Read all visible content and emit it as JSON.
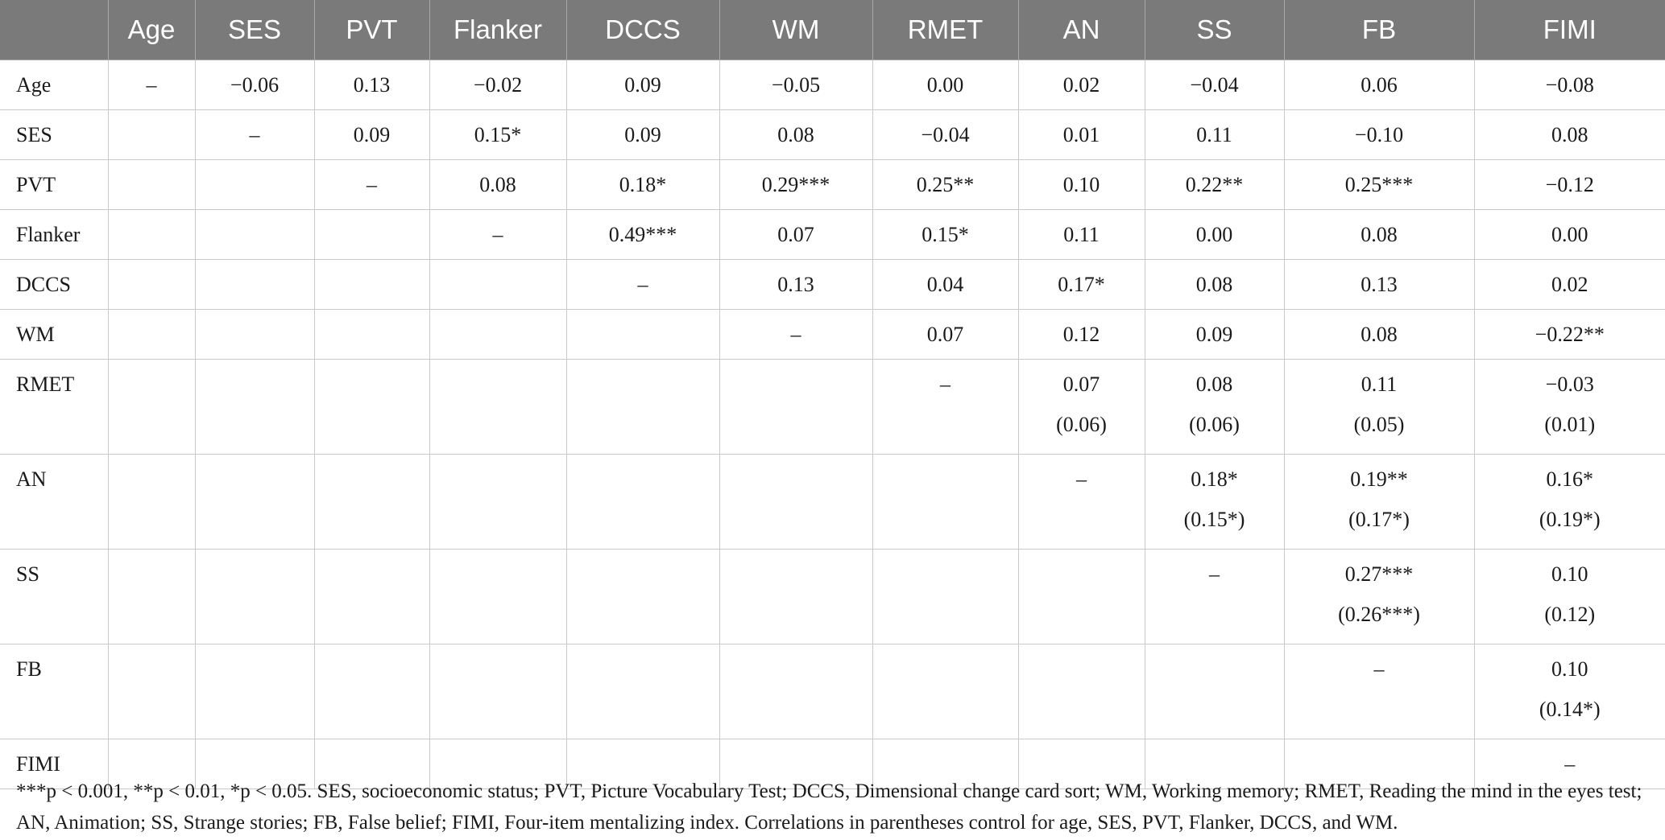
{
  "columns": [
    "",
    "Age",
    "SES",
    "PVT",
    "Flanker",
    "DCCS",
    "WM",
    "RMET",
    "AN",
    "SS",
    "FB",
    "FIMI"
  ],
  "rows": [
    {
      "label": "Age",
      "cells": [
        {
          "v": "–"
        },
        {
          "v": "−0.06"
        },
        {
          "v": "0.13"
        },
        {
          "v": "−0.02"
        },
        {
          "v": "0.09"
        },
        {
          "v": "−0.05"
        },
        {
          "v": "0.00"
        },
        {
          "v": "0.02"
        },
        {
          "v": "−0.04"
        },
        {
          "v": "0.06"
        },
        {
          "v": "−0.08"
        }
      ]
    },
    {
      "label": "SES",
      "cells": [
        {
          "v": ""
        },
        {
          "v": "–"
        },
        {
          "v": "0.09"
        },
        {
          "v": "0.15*"
        },
        {
          "v": "0.09"
        },
        {
          "v": "0.08"
        },
        {
          "v": "−0.04"
        },
        {
          "v": "0.01"
        },
        {
          "v": "0.11"
        },
        {
          "v": "−0.10"
        },
        {
          "v": "0.08"
        }
      ]
    },
    {
      "label": "PVT",
      "cells": [
        {
          "v": ""
        },
        {
          "v": ""
        },
        {
          "v": "–"
        },
        {
          "v": "0.08"
        },
        {
          "v": "0.18*"
        },
        {
          "v": "0.29***"
        },
        {
          "v": "0.25**"
        },
        {
          "v": "0.10"
        },
        {
          "v": "0.22**"
        },
        {
          "v": "0.25***"
        },
        {
          "v": "−0.12"
        }
      ]
    },
    {
      "label": "Flanker",
      "cells": [
        {
          "v": ""
        },
        {
          "v": ""
        },
        {
          "v": ""
        },
        {
          "v": "–"
        },
        {
          "v": "0.49***"
        },
        {
          "v": "0.07"
        },
        {
          "v": "0.15*"
        },
        {
          "v": "0.11"
        },
        {
          "v": "0.00"
        },
        {
          "v": "0.08"
        },
        {
          "v": "0.00"
        }
      ]
    },
    {
      "label": "DCCS",
      "cells": [
        {
          "v": ""
        },
        {
          "v": ""
        },
        {
          "v": ""
        },
        {
          "v": ""
        },
        {
          "v": "–"
        },
        {
          "v": "0.13"
        },
        {
          "v": "0.04"
        },
        {
          "v": "0.17*"
        },
        {
          "v": "0.08"
        },
        {
          "v": "0.13"
        },
        {
          "v": "0.02"
        }
      ]
    },
    {
      "label": "WM",
      "cells": [
        {
          "v": ""
        },
        {
          "v": ""
        },
        {
          "v": ""
        },
        {
          "v": ""
        },
        {
          "v": ""
        },
        {
          "v": "–"
        },
        {
          "v": "0.07"
        },
        {
          "v": "0.12"
        },
        {
          "v": "0.09"
        },
        {
          "v": "0.08"
        },
        {
          "v": "−0.22**"
        }
      ]
    },
    {
      "label": "RMET",
      "cells": [
        {
          "v": ""
        },
        {
          "v": ""
        },
        {
          "v": ""
        },
        {
          "v": ""
        },
        {
          "v": ""
        },
        {
          "v": ""
        },
        {
          "v": "–"
        },
        {
          "v": "0.07",
          "s": "(0.06)"
        },
        {
          "v": "0.08",
          "s": "(0.06)"
        },
        {
          "v": "0.11",
          "s": "(0.05)"
        },
        {
          "v": "−0.03",
          "s": "(0.01)"
        }
      ]
    },
    {
      "label": "AN",
      "cells": [
        {
          "v": ""
        },
        {
          "v": ""
        },
        {
          "v": ""
        },
        {
          "v": ""
        },
        {
          "v": ""
        },
        {
          "v": ""
        },
        {
          "v": ""
        },
        {
          "v": "–"
        },
        {
          "v": "0.18*",
          "s": "(0.15*)"
        },
        {
          "v": "0.19**",
          "s": "(0.17*)"
        },
        {
          "v": "0.16*",
          "s": "(0.19*)"
        }
      ]
    },
    {
      "label": "SS",
      "cells": [
        {
          "v": ""
        },
        {
          "v": ""
        },
        {
          "v": ""
        },
        {
          "v": ""
        },
        {
          "v": ""
        },
        {
          "v": ""
        },
        {
          "v": ""
        },
        {
          "v": ""
        },
        {
          "v": "–"
        },
        {
          "v": "0.27***",
          "s": "(0.26***)"
        },
        {
          "v": "0.10",
          "s": "(0.12)"
        }
      ]
    },
    {
      "label": "FB",
      "cells": [
        {
          "v": ""
        },
        {
          "v": ""
        },
        {
          "v": ""
        },
        {
          "v": ""
        },
        {
          "v": ""
        },
        {
          "v": ""
        },
        {
          "v": ""
        },
        {
          "v": ""
        },
        {
          "v": ""
        },
        {
          "v": "–"
        },
        {
          "v": "0.10",
          "s": "(0.14*)"
        }
      ]
    },
    {
      "label": "FIMI",
      "cells": [
        {
          "v": ""
        },
        {
          "v": ""
        },
        {
          "v": ""
        },
        {
          "v": ""
        },
        {
          "v": ""
        },
        {
          "v": ""
        },
        {
          "v": ""
        },
        {
          "v": ""
        },
        {
          "v": ""
        },
        {
          "v": ""
        },
        {
          "v": "–"
        }
      ]
    }
  ],
  "note": "***p < 0.001, **p < 0.01, *p < 0.05. SES, socioeconomic status; PVT, Picture Vocabulary Test; DCCS, Dimensional change card sort; WM, Working memory; RMET, Reading the mind in the eyes test; AN, Animation; SS, Strange stories; FB, False belief; FIMI, Four-item mentalizing index. Correlations in parentheses control for age, SES, PVT, Flanker, DCCS, and WM.",
  "colors": {
    "header_bg": "#7a7a7a",
    "header_text": "#ffffff",
    "grid": "#c9c9c9"
  }
}
